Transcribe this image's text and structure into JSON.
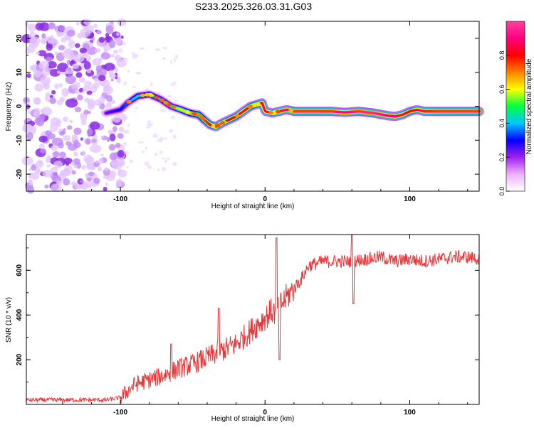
{
  "title": "S233.2025.326.03.31.G03",
  "chart_data": [
    {
      "type": "heatmap",
      "title": "S233.2025.326.03.31.G03",
      "xlabel": "Height of straight line (km)",
      "ylabel": "Frequency (Hz)",
      "xlim": [
        -165,
        148
      ],
      "ylim": [
        -25,
        25
      ],
      "x_ticks": [
        -100,
        0,
        100
      ],
      "y_ticks": [
        -20,
        -10,
        0,
        10,
        20
      ],
      "colorbar": {
        "label": "Normalized spectral amplitude",
        "range": [
          0,
          1
        ],
        "ticks": [
          0.0,
          0.2,
          0.4,
          0.6,
          0.8
        ],
        "colors": [
          "#ffffff",
          "#f0b0ff",
          "#a020f0",
          "#0000ff",
          "#00c8ff",
          "#00ff40",
          "#ffff00",
          "#ff8000",
          "#ff0000",
          "#ff0080",
          "#ff40a0"
        ]
      },
      "noise_region_x": [
        -165,
        -100
      ],
      "ridge": {
        "x": [
          -110,
          -100,
          -95,
          -88,
          -80,
          -72,
          -65,
          -58,
          -52,
          -46,
          -42,
          -38,
          -34,
          -30,
          -25,
          -20,
          -15,
          -10,
          -6,
          -2,
          0,
          5,
          10,
          15,
          20,
          25,
          35,
          45,
          55,
          65,
          75,
          85,
          90,
          95,
          100,
          105,
          110,
          120,
          130,
          140,
          148
        ],
        "y": [
          -2,
          -1,
          1,
          3,
          3.5,
          2,
          0,
          -1,
          -2,
          -2.5,
          -4,
          -5.5,
          -6,
          -5,
          -4,
          -3,
          -1.5,
          0,
          0.5,
          1,
          -1.5,
          -2,
          -1.5,
          -1,
          -1.5,
          -1.5,
          -1.5,
          -1.5,
          -1.8,
          -1.5,
          -2,
          -2.8,
          -3,
          -2.5,
          -1.5,
          -1,
          -1.5,
          -1.5,
          -1.5,
          -1.5,
          -1.5
        ],
        "amplitude": [
          0.25,
          0.3,
          0.35,
          0.45,
          0.45,
          0.45,
          0.5,
          0.6,
          0.65,
          0.7,
          0.75,
          0.8,
          0.85,
          0.85,
          0.8,
          0.8,
          0.85,
          0.8,
          0.8,
          0.85,
          0.85,
          0.85,
          0.9,
          0.9,
          0.95,
          0.95,
          0.95,
          0.95,
          0.9,
          0.95,
          0.95,
          0.9,
          0.9,
          0.85,
          0.8,
          0.85,
          0.9,
          0.95,
          0.95,
          0.95,
          0.95
        ]
      }
    },
    {
      "type": "line",
      "xlabel": "Height of straight line (km)",
      "ylabel": "SNR (10 * v/v)",
      "xlim": [
        -165,
        148
      ],
      "ylim": [
        0,
        760
      ],
      "x_ticks": [
        -100,
        0,
        100
      ],
      "y_ticks": [
        200,
        400,
        600
      ],
      "series": [
        {
          "name": "SNR",
          "color": "#e8373a",
          "x": [
            -165,
            -110,
            -100,
            -95,
            -90,
            -80,
            -70,
            -60,
            -50,
            -40,
            -30,
            -20,
            -10,
            -5,
            0,
            5,
            8,
            10,
            15,
            20,
            25,
            30,
            40,
            50,
            60,
            70,
            80,
            90,
            100,
            110,
            120,
            130,
            140,
            148
          ],
          "y": [
            20,
            20,
            30,
            60,
            90,
            110,
            130,
            160,
            180,
            210,
            240,
            270,
            330,
            360,
            390,
            420,
            400,
            440,
            480,
            520,
            560,
            620,
            640,
            640,
            640,
            650,
            660,
            640,
            650,
            640,
            650,
            660,
            660,
            650
          ]
        }
      ],
      "spikes": [
        {
          "x": 8,
          "y": 745
        },
        {
          "x": 60,
          "y": 760
        },
        {
          "x": 61,
          "y": 450
        },
        {
          "x": 10,
          "y": 200
        },
        {
          "x": -32,
          "y": 430
        },
        {
          "x": -65,
          "y": 270
        }
      ]
    }
  ]
}
